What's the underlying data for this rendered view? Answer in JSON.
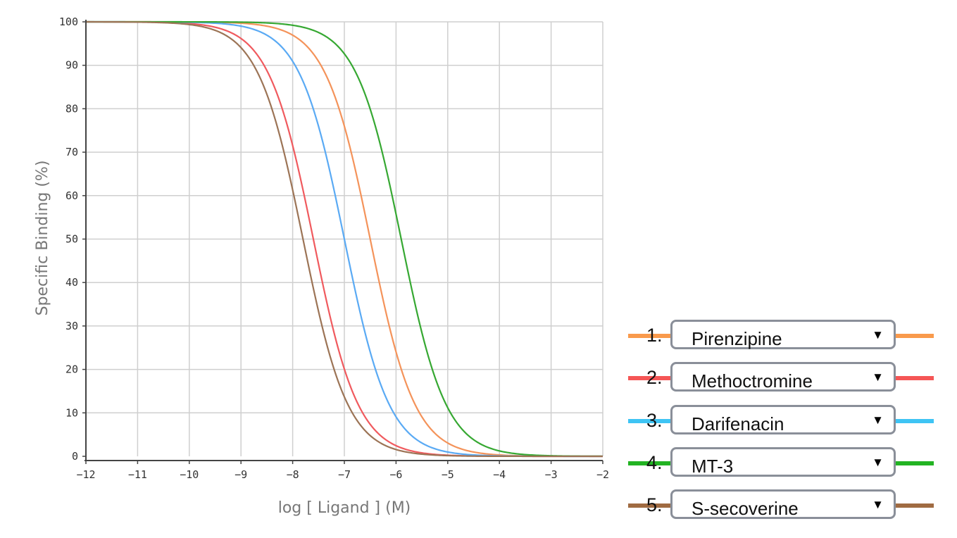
{
  "chart_data": {
    "type": "line",
    "xlabel": "log [ Ligand ] (M)",
    "ylabel": "Specific Binding (%)",
    "xlim": [
      -12,
      -2
    ],
    "ylim": [
      0,
      100
    ],
    "xticks": [
      "−12",
      "−11",
      "−10",
      "−9",
      "−8",
      "−7",
      "−6",
      "−5",
      "−4",
      "−3",
      "−2"
    ],
    "yticks": [
      "0",
      "10",
      "20",
      "30",
      "40",
      "50",
      "60",
      "70",
      "80",
      "90",
      "100"
    ],
    "grid": true,
    "legend_placement": "bottom-right",
    "series": [
      {
        "name": "Pirenzipine",
        "color": "#f4935a",
        "log_ic50": -6.5
      },
      {
        "name": "Methoctromine",
        "color": "#f05a5e",
        "log_ic50": -7.6
      },
      {
        "name": "Darifenacin",
        "color": "#5aaaf4",
        "log_ic50": -7.0
      },
      {
        "name": "MT-3",
        "color": "#36a832",
        "log_ic50": -5.9
      },
      {
        "name": "S-secoverine",
        "color": "#9c7456",
        "log_ic50": -7.8
      }
    ]
  },
  "legend": {
    "items": [
      {
        "number": "1.",
        "label": "Pirenzipine",
        "color": "#f99a4c"
      },
      {
        "number": "2.",
        "label": "Methoctromine",
        "color": "#f55656"
      },
      {
        "number": "3.",
        "label": "Darifenacin",
        "color": "#3ec4f4"
      },
      {
        "number": "4.",
        "label": "MT-3",
        "color": "#22b322"
      },
      {
        "number": "5.",
        "label": "S-secoverine",
        "color": "#a06b42"
      }
    ],
    "dropdown_arrow": "▼"
  }
}
